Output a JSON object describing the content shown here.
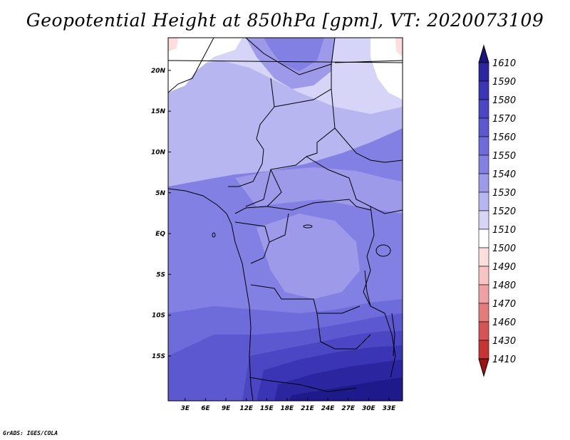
{
  "title": "Geopotential Height at 850hPa [gpm], VT: 2020073109",
  "credit": "GrADS: IGES/COLA",
  "map": {
    "projection": "lat-lon",
    "region": "Central Africa",
    "lon_range_deg": [
      0.5,
      35
    ],
    "lat_range_deg": [
      -20.5,
      24
    ],
    "lon_ticks": [
      "3E",
      "6E",
      "9E",
      "12E",
      "15E",
      "18E",
      "21E",
      "24E",
      "27E",
      "30E",
      "33E"
    ],
    "lon_tick_values": [
      3,
      6,
      9,
      12,
      15,
      18,
      21,
      24,
      27,
      30,
      33
    ],
    "lat_ticks": [
      "20N",
      "15N",
      "10N",
      "5N",
      "EQ",
      "5S",
      "10S",
      "15S"
    ],
    "lat_tick_values": [
      20,
      15,
      10,
      5,
      0,
      -5,
      -10,
      -15
    ]
  },
  "colorbar": {
    "labels": [
      "1610",
      "1590",
      "1580",
      "1570",
      "1560",
      "1550",
      "1540",
      "1530",
      "1520",
      "1510",
      "1500",
      "1490",
      "1480",
      "1470",
      "1460",
      "1430",
      "1410"
    ],
    "colors": [
      "#1f1a8c",
      "#2b26a0",
      "#3a35b4",
      "#4a46c4",
      "#5c58d0",
      "#6e6bdb",
      "#8380e3",
      "#9d9aea",
      "#b8b6f1",
      "#d6d5f8",
      "#ffffff",
      "#fcdede",
      "#f7c3c3",
      "#efa0a0",
      "#e47c7c",
      "#d65454",
      "#c73434",
      "#b01e1e"
    ],
    "top_color": "#1a1480",
    "bottom_color": "#a11010"
  }
}
